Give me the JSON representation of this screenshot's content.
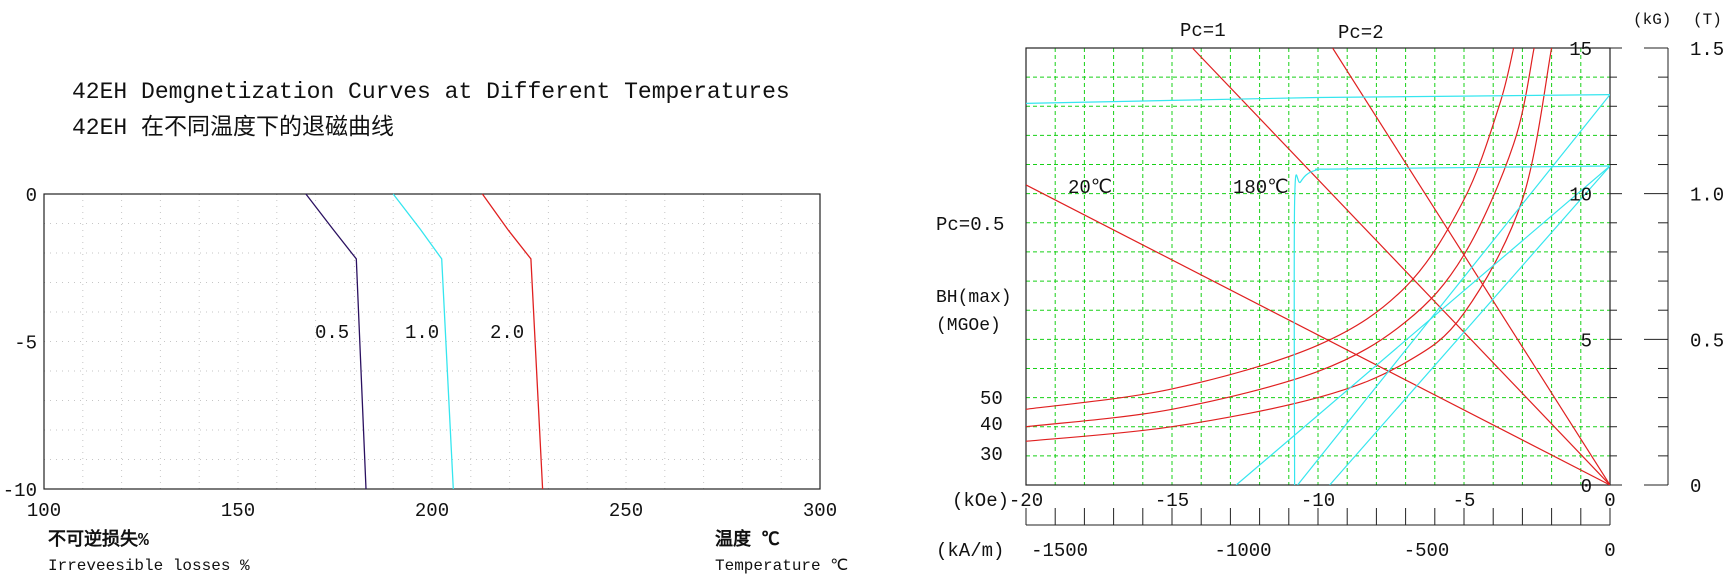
{
  "titles": {
    "en": "42EH Demgnetization Curves at Different Temperatures",
    "zh": "42EH 在不同温度下的退磁曲线"
  },
  "left_labels": {
    "yaxis_zh": "不可逆损失%",
    "yaxis_en": "Irreveesible losses %",
    "xaxis_zh": "温度 ℃",
    "xaxis_en": "Temperature ℃"
  },
  "right_labels": {
    "pc1": "Pc=1",
    "pc2": "Pc=2",
    "pc05": "Pc=0.5",
    "temp20": "20℃",
    "temp180": "180℃",
    "bhmax_1": "BH(max)",
    "bhmax_2": "(MGOe)",
    "bh50": "50",
    "bh40": "40",
    "bh30": "30",
    "unit_koe": "(kOe)",
    "unit_kam": "(kA/m)",
    "unit_kg": "(kG)",
    "unit_t": "(T)"
  },
  "colors": {
    "curve_0_5": "#2a1060",
    "curve_1_0": "#35e6ef",
    "curve_2_0": "#e02020",
    "grid_green": "#18d018",
    "curve_20c": "#e02020",
    "curve_180c": "#35e6ef"
  },
  "chart_data": [
    {
      "type": "line",
      "title": "42EH Demgnetization Curves at Different Temperatures",
      "xlabel": "温度 ℃",
      "ylabel": "不可逆损失%",
      "xlim": [
        100,
        300
      ],
      "ylim": [
        -10,
        0
      ],
      "xticks": [
        100,
        150,
        200,
        250,
        300
      ],
      "xtick_labels": [
        "100",
        "150",
        "200",
        "250",
        "300"
      ],
      "yticks": [
        0,
        -5,
        -10
      ],
      "ytick_labels": [
        "0",
        "-5",
        "-10"
      ],
      "grid": true,
      "series": [
        {
          "name": "0.5",
          "points": [
            [
              167.5,
              0
            ],
            [
              174.5,
              -1.2
            ],
            [
              180.5,
              -2.2
            ],
            [
              183,
              -10
            ]
          ]
        },
        {
          "name": "1.0",
          "points": [
            [
              190,
              0
            ],
            [
              197,
              -1.2
            ],
            [
              202.5,
              -2.2
            ],
            [
              205.5,
              -10
            ]
          ]
        },
        {
          "name": "2.0",
          "points": [
            [
              213,
              0
            ],
            [
              219.5,
              -1.2
            ],
            [
              225.5,
              -2.2
            ],
            [
              228.5,
              -10
            ]
          ]
        }
      ]
    },
    {
      "type": "line",
      "title": "",
      "xlabel": "(kOe)",
      "x2label": "(kA/m)",
      "ylabel": "(kG)",
      "y2label": "(T)",
      "xlim": [
        -20,
        0
      ],
      "ylim": [
        0,
        15
      ],
      "xticks": [
        -20,
        -15,
        -10,
        -5,
        0
      ],
      "xtick_labels": [
        "-20",
        "-15",
        "-10",
        "-5",
        "0"
      ],
      "x2ticks": [
        -1500,
        -1000,
        -500,
        0
      ],
      "x2tick_labels": [
        "-1500",
        "-1000",
        "-500",
        "0"
      ],
      "yticks": [
        0,
        5,
        10,
        15
      ],
      "ytick_labels": [
        "0",
        "5",
        "10",
        "15"
      ],
      "y2ticks": [
        0,
        0.5,
        1.0,
        1.5
      ],
      "y2tick_labels": [
        "0",
        "0.5",
        "1.0",
        "1.5"
      ],
      "grid": true,
      "series": [
        {
          "name": "20℃",
          "points": [
            [
              -20,
              13.1
            ],
            [
              -15,
              13.2
            ],
            [
              -10,
              13.3
            ],
            [
              -5,
              13.35
            ],
            [
              0,
              13.4
            ]
          ]
        },
        {
          "name": "180℃",
          "points": [
            [
              -10.8,
              0
            ],
            [
              -10.8,
              9.7
            ],
            [
              -10.6,
              10.4
            ],
            [
              -10.1,
              10.8
            ],
            [
              -9,
              10.85
            ],
            [
              0,
              10.95
            ]
          ]
        }
      ],
      "intrinsic_lines": [
        [
          [
            -10.7,
            0
          ],
          [
            0,
            13.4
          ]
        ],
        [
          [
            -12.8,
            0
          ],
          [
            0,
            10.95
          ]
        ],
        [
          [
            -9.6,
            0
          ],
          [
            0,
            10.95
          ]
        ]
      ],
      "load_lines": [
        {
          "label": "Pc=1",
          "points": [
            [
              -14.3,
              15
            ],
            [
              0,
              0
            ]
          ]
        },
        {
          "label": "Pc=2",
          "points": [
            [
              -9.5,
              15
            ],
            [
              0,
              0
            ]
          ]
        },
        {
          "label": "Pc=0.5",
          "points": [
            [
              -20,
              10.3
            ],
            [
              0,
              0
            ]
          ]
        }
      ],
      "bhmax_curves": [
        {
          "label": "50",
          "points": [
            [
              -20,
              2.6
            ],
            [
              -15,
              3.3
            ],
            [
              -10,
              4.8
            ],
            [
              -7,
              6.8
            ],
            [
              -5,
              9.8
            ],
            [
              -3.8,
              13.0
            ],
            [
              -3.3,
              15
            ]
          ]
        },
        {
          "label": "40",
          "points": [
            [
              -20,
              2.0
            ],
            [
              -15,
              2.6
            ],
            [
              -10,
              3.9
            ],
            [
              -7,
              5.6
            ],
            [
              -5,
              7.9
            ],
            [
              -3.3,
              11.7
            ],
            [
              -2.6,
              15
            ]
          ]
        },
        {
          "label": "30",
          "points": [
            [
              -20,
              1.5
            ],
            [
              -15,
              2.0
            ],
            [
              -10,
              3.0
            ],
            [
              -7,
              4.2
            ],
            [
              -5,
              5.9
            ],
            [
              -3,
              9.8
            ],
            [
              -2.0,
              15
            ]
          ]
        }
      ]
    }
  ]
}
